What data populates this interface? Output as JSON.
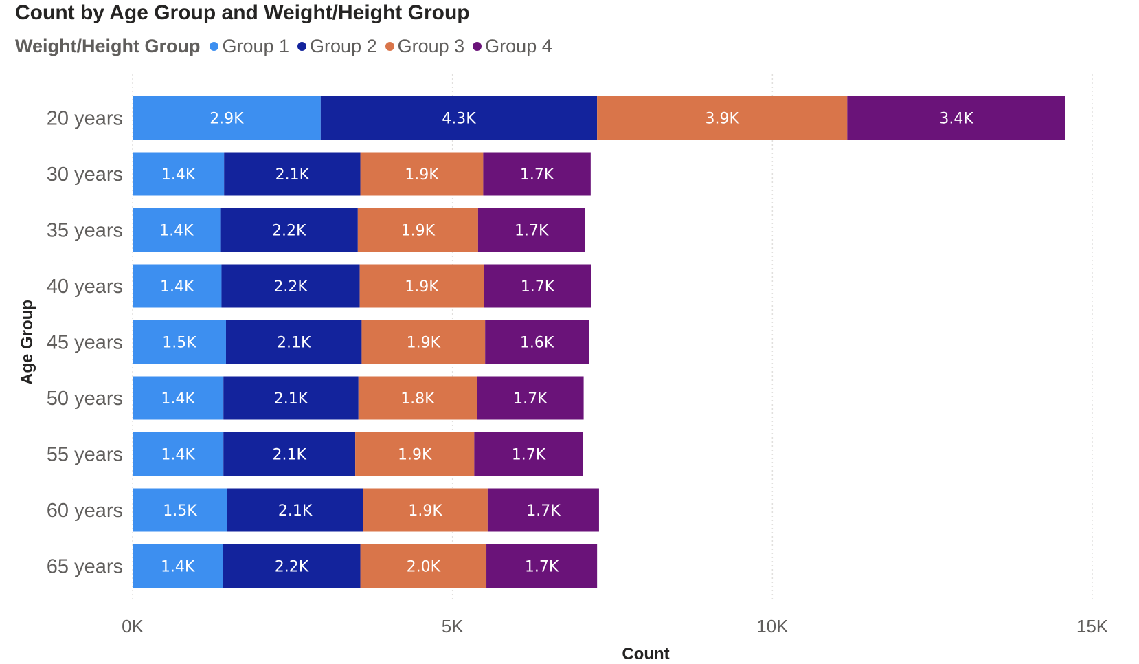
{
  "chart_data": {
    "type": "bar",
    "orientation": "horizontal",
    "stacked": true,
    "title": "Count by Age Group and Weight/Height Group",
    "legend_title": "Weight/Height Group",
    "legend_position": "top-left",
    "xlabel": "Count",
    "ylabel": "Age Group",
    "xlim": [
      0,
      15000
    ],
    "x_ticks": [
      0,
      5000,
      10000,
      15000
    ],
    "x_tick_labels": [
      "0K",
      "5K",
      "10K",
      "15K"
    ],
    "grid": true,
    "categories": [
      "20 years",
      "30 years",
      "35 years",
      "40 years",
      "45 years",
      "50 years",
      "55 years",
      "60 years",
      "65 years"
    ],
    "series": [
      {
        "name": "Group 1",
        "color": "#3d8ff0",
        "values": [
          2940,
          1430,
          1370,
          1390,
          1460,
          1420,
          1420,
          1480,
          1410
        ],
        "labels": [
          "2.9K",
          "1.4K",
          "1.4K",
          "1.4K",
          "1.5K",
          "1.4K",
          "1.4K",
          "1.5K",
          "1.4K"
        ]
      },
      {
        "name": "Group 2",
        "color": "#13239c",
        "values": [
          4320,
          2130,
          2150,
          2160,
          2120,
          2110,
          2060,
          2120,
          2150
        ],
        "labels": [
          "4.3K",
          "2.1K",
          "2.2K",
          "2.2K",
          "2.1K",
          "2.1K",
          "2.1K",
          "2.1K",
          "2.2K"
        ]
      },
      {
        "name": "Group 3",
        "color": "#d9754a",
        "values": [
          3910,
          1920,
          1880,
          1940,
          1930,
          1850,
          1860,
          1950,
          1970
        ],
        "labels": [
          "3.9K",
          "1.9K",
          "1.9K",
          "1.9K",
          "1.9K",
          "1.8K",
          "1.9K",
          "1.9K",
          "2.0K"
        ]
      },
      {
        "name": "Group 4",
        "color": "#6a1379",
        "values": [
          3410,
          1680,
          1670,
          1680,
          1620,
          1670,
          1700,
          1740,
          1730
        ],
        "labels": [
          "3.4K",
          "1.7K",
          "1.7K",
          "1.7K",
          "1.6K",
          "1.7K",
          "1.7K",
          "1.7K",
          "1.7K"
        ]
      }
    ]
  }
}
